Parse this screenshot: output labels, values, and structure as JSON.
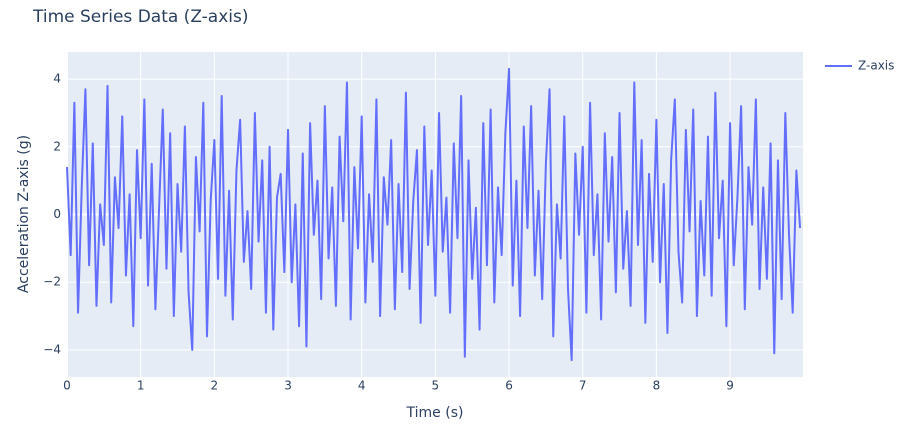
{
  "chart_data": {
    "type": "line",
    "title": "Time Series Data (Z-axis)",
    "xlabel": "Time (s)",
    "ylabel": "Acceleration Z-axis (g)",
    "xlim": [
      0,
      9.99
    ],
    "ylim": [
      -4.8,
      4.8
    ],
    "xticks": [
      0,
      1,
      2,
      3,
      4,
      5,
      6,
      7,
      8,
      9
    ],
    "yticks": [
      {
        "value": -4,
        "label": "−4"
      },
      {
        "value": -2,
        "label": "−2"
      },
      0,
      2,
      4
    ],
    "grid": true,
    "legend": "top-right",
    "x": [
      0,
      0.05,
      0.1,
      0.15,
      0.2,
      0.25,
      0.3,
      0.35,
      0.4,
      0.45,
      0.5,
      0.55,
      0.6,
      0.65,
      0.7,
      0.75,
      0.8,
      0.85,
      0.9,
      0.95,
      1,
      1.05,
      1.1,
      1.15,
      1.2,
      1.25,
      1.3,
      1.35,
      1.4,
      1.45,
      1.5,
      1.55,
      1.6,
      1.65,
      1.7,
      1.75,
      1.8,
      1.85,
      1.9,
      1.95,
      2,
      2.05,
      2.1,
      2.15,
      2.2,
      2.25,
      2.3,
      2.35,
      2.4,
      2.45,
      2.5,
      2.55,
      2.6,
      2.65,
      2.7,
      2.75,
      2.8,
      2.85,
      2.9,
      2.95,
      3,
      3.05,
      3.1,
      3.15,
      3.2,
      3.25,
      3.3,
      3.35,
      3.4,
      3.45,
      3.5,
      3.55,
      3.6,
      3.65,
      3.7,
      3.75,
      3.8,
      3.85,
      3.9,
      3.95,
      4,
      4.05,
      4.1,
      4.15,
      4.2,
      4.25,
      4.3,
      4.35,
      4.4,
      4.45,
      4.5,
      4.55,
      4.6,
      4.65,
      4.7,
      4.75,
      4.8,
      4.85,
      4.9,
      4.95,
      5,
      5.05,
      5.1,
      5.15,
      5.2,
      5.25,
      5.3,
      5.35,
      5.4,
      5.45,
      5.5,
      5.55,
      5.6,
      5.65,
      5.7,
      5.75,
      5.8,
      5.85,
      5.9,
      5.95,
      6,
      6.05,
      6.1,
      6.15,
      6.2,
      6.25,
      6.3,
      6.35,
      6.4,
      6.45,
      6.5,
      6.55,
      6.6,
      6.65,
      6.7,
      6.75,
      6.8,
      6.85,
      6.9,
      6.95,
      7,
      7.05,
      7.1,
      7.15,
      7.2,
      7.25,
      7.3,
      7.35,
      7.4,
      7.45,
      7.5,
      7.55,
      7.6,
      7.65,
      7.7,
      7.75,
      7.8,
      7.85,
      7.9,
      7.95,
      8,
      8.05,
      8.1,
      8.15,
      8.2,
      8.25,
      8.3,
      8.35,
      8.4,
      8.45,
      8.5,
      8.55,
      8.6,
      8.65,
      8.7,
      8.75,
      8.8,
      8.85,
      8.9,
      8.95,
      9,
      9.05,
      9.1,
      9.15,
      9.2,
      9.25,
      9.3,
      9.35,
      9.4,
      9.45,
      9.5,
      9.55,
      9.6,
      9.65,
      9.7,
      9.75,
      9.8,
      9.85,
      9.9,
      9.95
    ],
    "series": [
      {
        "name": "Z-axis",
        "color": "#636efa",
        "values": [
          1.4,
          -1.2,
          3.3,
          -2.9,
          0.8,
          3.7,
          -1.5,
          2.1,
          -2.7,
          0.3,
          -0.9,
          3.8,
          -2.6,
          1.1,
          -0.4,
          2.9,
          -1.8,
          0.6,
          -3.3,
          1.9,
          -0.7,
          3.4,
          -2.1,
          1.5,
          -2.8,
          0.2,
          3.1,
          -1.6,
          2.4,
          -3.0,
          0.9,
          -1.1,
          2.6,
          -2.3,
          -4.0,
          1.7,
          -0.5,
          3.3,
          -3.6,
          0.4,
          2.2,
          -1.9,
          3.5,
          -2.4,
          0.7,
          -3.1,
          1.3,
          2.8,
          -1.4,
          0.1,
          -2.2,
          3.0,
          -0.8,
          1.6,
          -2.9,
          2.0,
          -3.4,
          0.5,
          1.2,
          -1.7,
          2.5,
          -2.0,
          0.3,
          -3.3,
          1.8,
          -3.9,
          2.7,
          -0.6,
          1.0,
          -2.5,
          3.2,
          -1.3,
          0.8,
          -2.7,
          2.3,
          -0.2,
          3.9,
          -3.1,
          1.4,
          -1.0,
          2.9,
          -2.6,
          0.6,
          -1.4,
          3.4,
          -3.0,
          1.1,
          -0.3,
          2.2,
          -2.8,
          0.9,
          -1.7,
          3.6,
          -2.2,
          0.4,
          1.9,
          -3.2,
          2.6,
          -0.9,
          1.3,
          -2.4,
          3.0,
          -1.1,
          0.5,
          -2.9,
          2.1,
          -0.7,
          3.5,
          -4.2,
          1.6,
          -1.9,
          0.2,
          -3.4,
          2.7,
          -1.5,
          3.1,
          -2.6,
          0.8,
          -1.2,
          2.4,
          4.3,
          -2.1,
          1.0,
          -3.0,
          2.6,
          -0.4,
          3.2,
          -1.8,
          0.7,
          -2.5,
          1.5,
          3.7,
          -3.6,
          0.3,
          -1.3,
          2.9,
          -2.2,
          -4.3,
          1.8,
          -0.6,
          2.0,
          -2.9,
          3.3,
          -1.2,
          0.6,
          -3.1,
          2.4,
          -0.8,
          1.7,
          -2.3,
          3.0,
          -1.6,
          0.1,
          -2.7,
          3.9,
          -0.9,
          2.2,
          -3.2,
          1.2,
          -1.4,
          2.8,
          -2.0,
          0.9,
          -3.5,
          1.6,
          3.4,
          -1.1,
          -2.6,
          2.5,
          -0.5,
          3.1,
          -3.0,
          0.4,
          -1.8,
          2.3,
          -2.4,
          3.6,
          -0.7,
          1.0,
          -3.3,
          2.7,
          -1.5,
          0.5,
          3.2,
          -2.8,
          1.4,
          -0.3,
          3.4,
          -2.2,
          0.8,
          -1.9,
          2.1,
          -4.1,
          1.6,
          -2.5,
          3.0,
          -0.6,
          -2.9,
          1.3,
          -0.4
        ]
      }
    ]
  }
}
